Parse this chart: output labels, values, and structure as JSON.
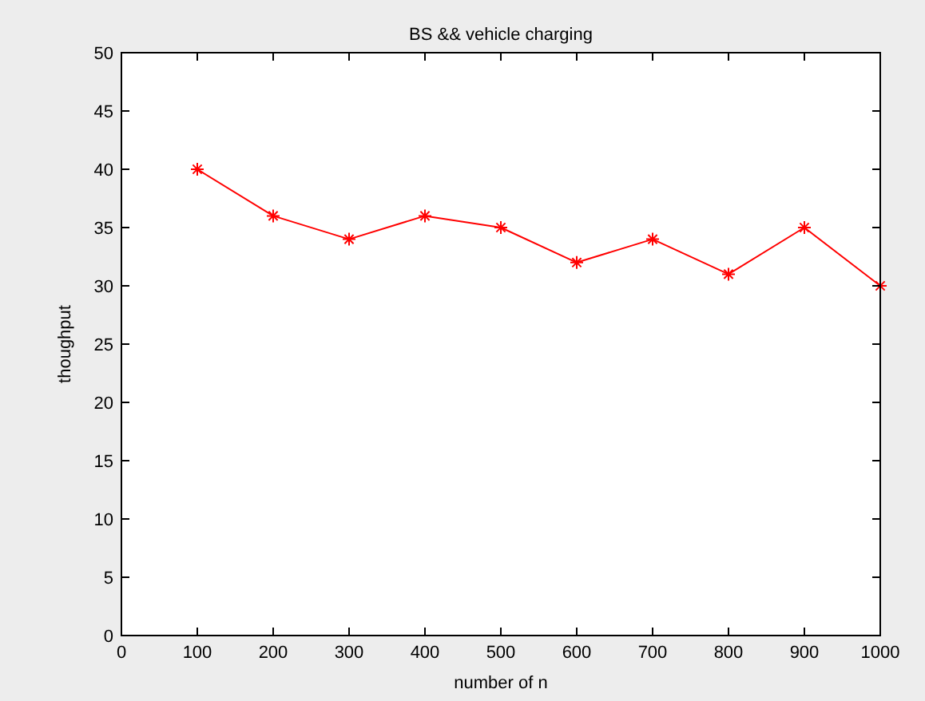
{
  "chart_data": {
    "type": "line",
    "title": "BS && vehicle charging",
    "xlabel": "number of n",
    "ylabel": "thoughput",
    "x": [
      100,
      200,
      300,
      400,
      500,
      600,
      700,
      800,
      900,
      1000
    ],
    "series": [
      {
        "color": "#ff0000",
        "values": [
          40,
          36,
          34,
          36,
          35,
          32,
          34,
          31,
          35,
          30
        ]
      }
    ],
    "xlim": [
      0,
      1000
    ],
    "xticks": [
      0,
      100,
      200,
      300,
      400,
      500,
      600,
      700,
      800,
      900,
      1000
    ],
    "ylim": [
      0,
      50
    ],
    "yticks": [
      0,
      5,
      10,
      15,
      20,
      25,
      30,
      35,
      40,
      45,
      50
    ],
    "grid": false,
    "marker": "cross",
    "line_style": "solid"
  }
}
